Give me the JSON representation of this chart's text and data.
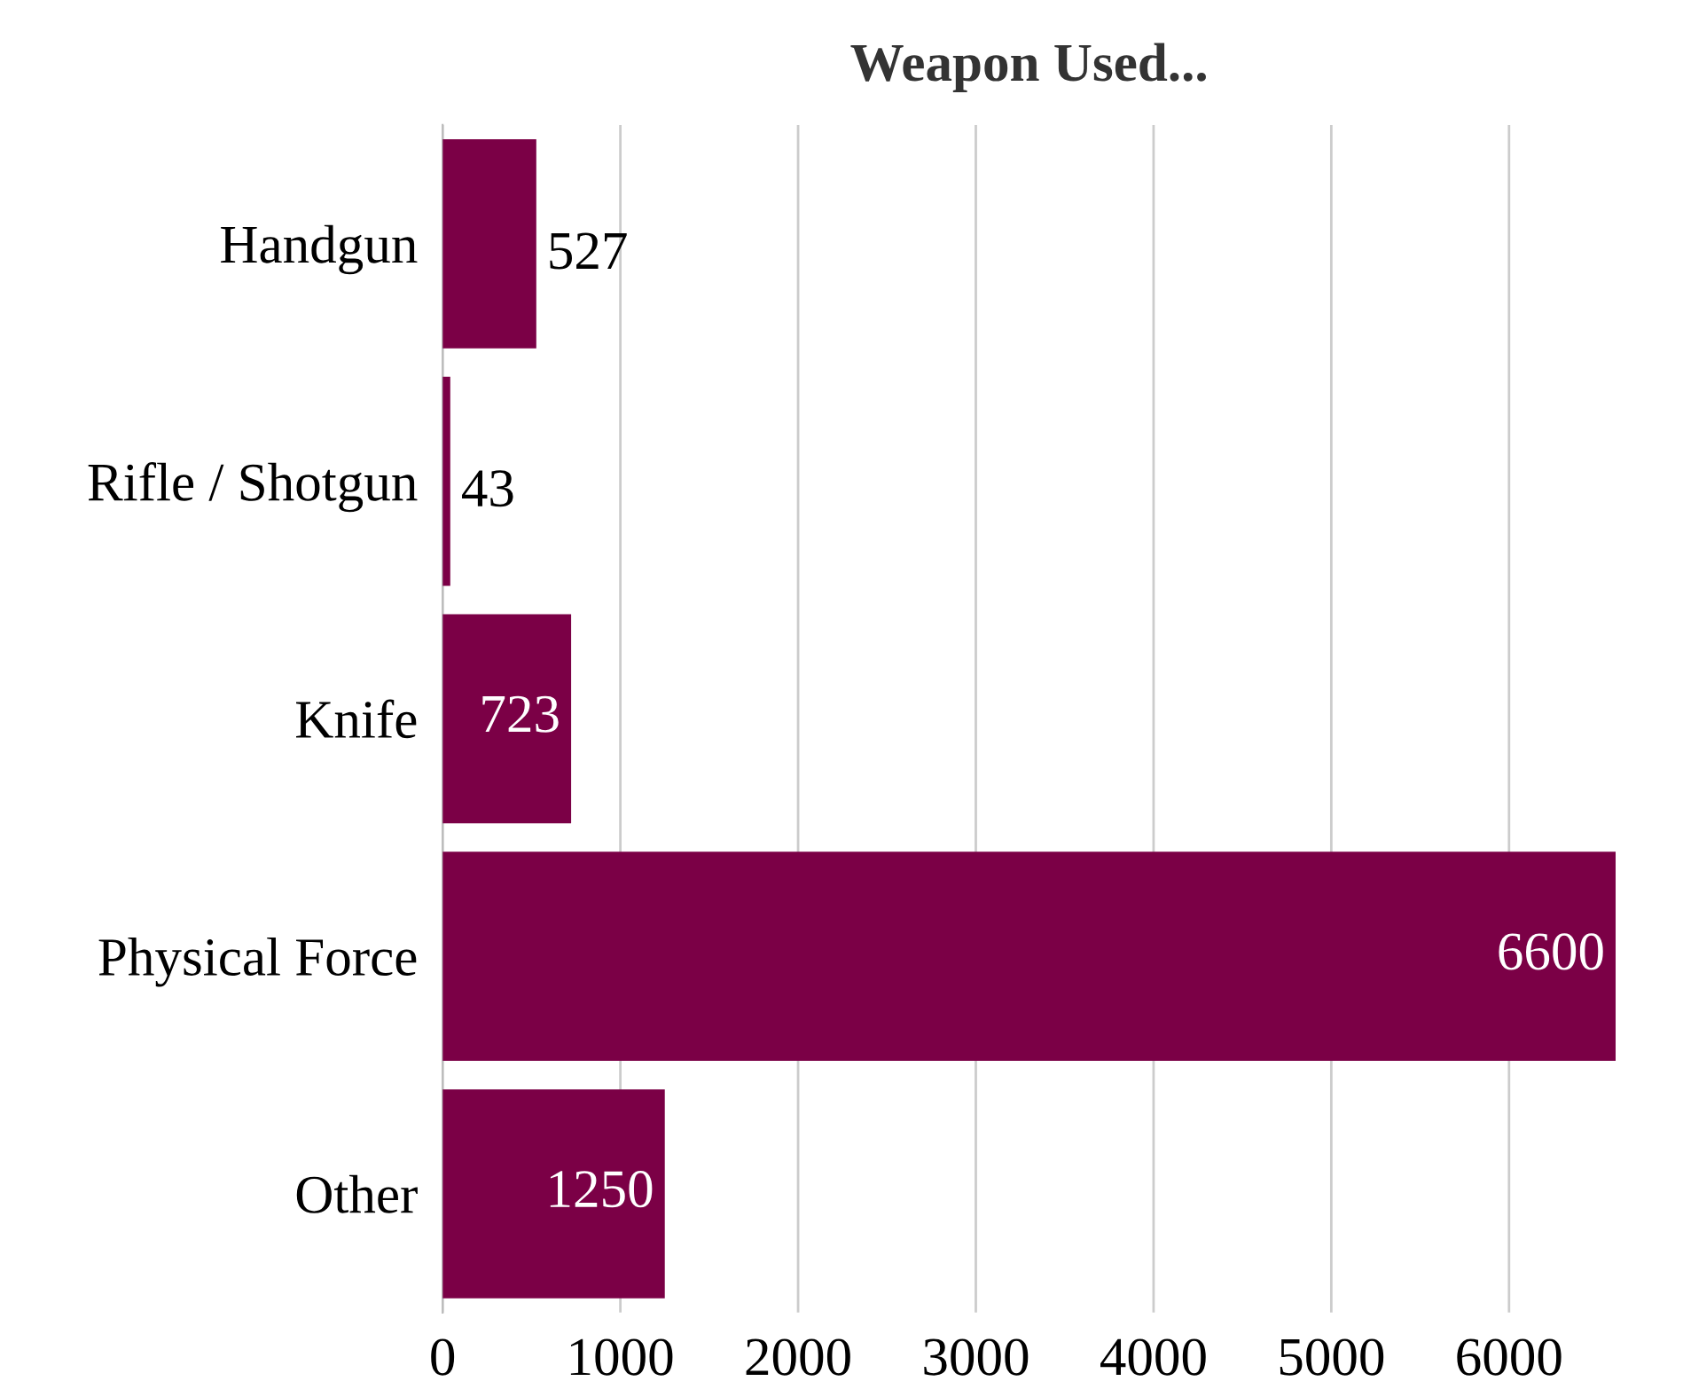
{
  "chart_data": {
    "type": "bar",
    "orientation": "horizontal",
    "title": "Weapon Used...",
    "categories": [
      "Handgun",
      "Rifle / Shotgun",
      "Knife",
      "Physical Force",
      "Other"
    ],
    "values": [
      527,
      43,
      723,
      6600,
      1250
    ],
    "color": "#7b0046",
    "xlim": [
      0,
      6600
    ],
    "xticks": [
      0,
      1000,
      2000,
      3000,
      4000,
      5000,
      6000
    ],
    "grid": "x",
    "data_labels": true,
    "legend": false
  }
}
